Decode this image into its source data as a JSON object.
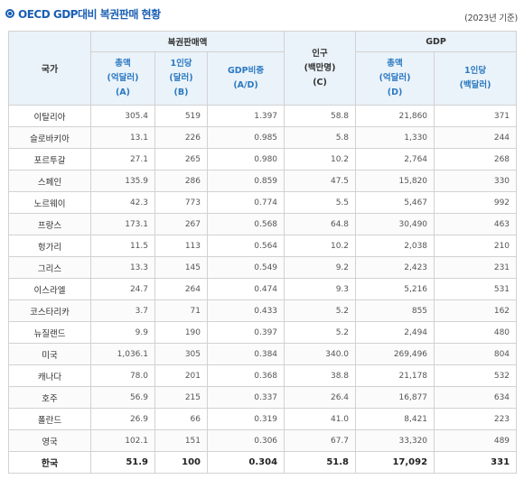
{
  "page": {
    "title": "OECD GDP대비 복권판매 현황",
    "year_note": "(2023년 기준)"
  },
  "table": {
    "col_country": "국가",
    "group_sales": "복권판매액",
    "group_gdp": "GDP",
    "sales_total": [
      "총액",
      "(억달러)",
      "(A)"
    ],
    "sales_per_capita": [
      "1인당",
      "(달러)",
      "(B)"
    ],
    "gdp_ratio": [
      "GDP비중",
      "(A/D)"
    ],
    "population": [
      "인구",
      "(백만명)",
      "(C)"
    ],
    "gdp_total": [
      "총액",
      "(억달러)",
      "(D)"
    ],
    "gdp_per_capita": [
      "1인당",
      "(백달러)"
    ],
    "rows": [
      {
        "country": "이탈리아",
        "sales_total": "305.4",
        "sales_pc": "519",
        "ratio": "1.397",
        "pop": "58.8",
        "gdp": "21,860",
        "gdp_pc": "371"
      },
      {
        "country": "슬로바키아",
        "sales_total": "13.1",
        "sales_pc": "226",
        "ratio": "0.985",
        "pop": "5.8",
        "gdp": "1,330",
        "gdp_pc": "244"
      },
      {
        "country": "포르투갈",
        "sales_total": "27.1",
        "sales_pc": "265",
        "ratio": "0.980",
        "pop": "10.2",
        "gdp": "2,764",
        "gdp_pc": "268"
      },
      {
        "country": "스페인",
        "sales_total": "135.9",
        "sales_pc": "286",
        "ratio": "0.859",
        "pop": "47.5",
        "gdp": "15,820",
        "gdp_pc": "330"
      },
      {
        "country": "노르웨이",
        "sales_total": "42.3",
        "sales_pc": "773",
        "ratio": "0.774",
        "pop": "5.5",
        "gdp": "5,467",
        "gdp_pc": "992"
      },
      {
        "country": "프랑스",
        "sales_total": "173.1",
        "sales_pc": "267",
        "ratio": "0.568",
        "pop": "64.8",
        "gdp": "30,490",
        "gdp_pc": "463"
      },
      {
        "country": "헝가리",
        "sales_total": "11.5",
        "sales_pc": "113",
        "ratio": "0.564",
        "pop": "10.2",
        "gdp": "2,038",
        "gdp_pc": "210"
      },
      {
        "country": "그리스",
        "sales_total": "13.3",
        "sales_pc": "145",
        "ratio": "0.549",
        "pop": "9.2",
        "gdp": "2,423",
        "gdp_pc": "231"
      },
      {
        "country": "이스라엘",
        "sales_total": "24.7",
        "sales_pc": "264",
        "ratio": "0.474",
        "pop": "9.3",
        "gdp": "5,216",
        "gdp_pc": "531"
      },
      {
        "country": "코스타리카",
        "sales_total": "3.7",
        "sales_pc": "71",
        "ratio": "0.433",
        "pop": "5.2",
        "gdp": "855",
        "gdp_pc": "162"
      },
      {
        "country": "뉴질랜드",
        "sales_total": "9.9",
        "sales_pc": "190",
        "ratio": "0.397",
        "pop": "5.2",
        "gdp": "2,494",
        "gdp_pc": "480"
      },
      {
        "country": "미국",
        "sales_total": "1,036.1",
        "sales_pc": "305",
        "ratio": "0.384",
        "pop": "340.0",
        "gdp": "269,496",
        "gdp_pc": "804"
      },
      {
        "country": "캐나다",
        "sales_total": "78.0",
        "sales_pc": "201",
        "ratio": "0.368",
        "pop": "38.8",
        "gdp": "21,178",
        "gdp_pc": "532"
      },
      {
        "country": "호주",
        "sales_total": "56.9",
        "sales_pc": "215",
        "ratio": "0.337",
        "pop": "26.4",
        "gdp": "16,877",
        "gdp_pc": "634"
      },
      {
        "country": "폴란드",
        "sales_total": "26.9",
        "sales_pc": "66",
        "ratio": "0.319",
        "pop": "41.0",
        "gdp": "8,421",
        "gdp_pc": "223"
      },
      {
        "country": "영국",
        "sales_total": "102.1",
        "sales_pc": "151",
        "ratio": "0.306",
        "pop": "67.7",
        "gdp": "33,320",
        "gdp_pc": "489"
      },
      {
        "country": "한국",
        "sales_total": "51.9",
        "sales_pc": "100",
        "ratio": "0.304",
        "pop": "51.8",
        "gdp": "17,092",
        "gdp_pc": "331",
        "highlight": true
      }
    ]
  }
}
